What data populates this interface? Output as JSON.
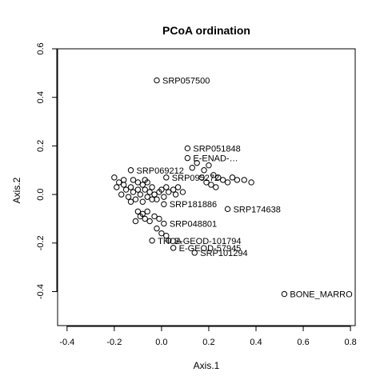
{
  "chart_data": {
    "type": "scatter",
    "title": "PCoA ordination",
    "xlabel": "Axis.1",
    "ylabel": "Axis.2",
    "xlim": [
      -0.44,
      0.82
    ],
    "ylim": [
      -0.54,
      0.6
    ],
    "xticks": [
      -0.4,
      -0.2,
      0.0,
      0.2,
      0.4,
      0.6,
      0.8
    ],
    "xtick_labels": [
      "-0.4",
      "-0.2",
      "0.0",
      "0.2",
      "0.4",
      "0.6",
      "0.8"
    ],
    "yticks": [
      -0.4,
      -0.2,
      0.0,
      0.2,
      0.4,
      0.6
    ],
    "ytick_labels": [
      "-0.4",
      "-0.2",
      "0.0",
      "0.2",
      "0.4",
      "0.6"
    ],
    "labeled_points": [
      {
        "label": "SRP057500",
        "x": -0.02,
        "y": 0.47
      },
      {
        "label": "SRP051848",
        "x": 0.11,
        "y": 0.19
      },
      {
        "label": "E-ENAD-…",
        "x": 0.11,
        "y": 0.15
      },
      {
        "label": "SRP069212",
        "x": -0.13,
        "y": 0.1
      },
      {
        "label": "SRP095272",
        "x": 0.02,
        "y": 0.07
      },
      {
        "label": "SRP174638",
        "x": 0.28,
        "y": -0.06
      },
      {
        "label": "SRP181886",
        "x": 0.01,
        "y": -0.04
      },
      {
        "label": "E-GEOD-101794",
        "x": 0.03,
        "y": -0.19
      },
      {
        "label": "THCA",
        "x": -0.04,
        "y": -0.19
      },
      {
        "label": "SRP101294",
        "x": 0.14,
        "y": -0.24
      },
      {
        "label": "E-GEOD-57945",
        "x": 0.05,
        "y": -0.22
      },
      {
        "label": "BONE_MARRO",
        "x": 0.52,
        "y": -0.41
      },
      {
        "label": "SRP048801",
        "x": 0.01,
        "y": -0.12
      }
    ],
    "unlabeled_points": [
      {
        "x": -0.2,
        "y": 0.07
      },
      {
        "x": -0.18,
        "y": 0.05
      },
      {
        "x": -0.16,
        "y": 0.04
      },
      {
        "x": -0.15,
        "y": 0.02
      },
      {
        "x": -0.13,
        "y": 0.03
      },
      {
        "x": -0.12,
        "y": 0.01
      },
      {
        "x": -0.1,
        "y": 0.02
      },
      {
        "x": -0.09,
        "y": 0.0
      },
      {
        "x": -0.08,
        "y": 0.04
      },
      {
        "x": -0.07,
        "y": 0.02
      },
      {
        "x": -0.06,
        "y": -0.01
      },
      {
        "x": -0.05,
        "y": 0.01
      },
      {
        "x": -0.04,
        "y": 0.03
      },
      {
        "x": -0.03,
        "y": 0.0
      },
      {
        "x": -0.02,
        "y": -0.02
      },
      {
        "x": -0.01,
        "y": 0.01
      },
      {
        "x": 0.0,
        "y": 0.02
      },
      {
        "x": 0.01,
        "y": -0.01
      },
      {
        "x": 0.02,
        "y": 0.03
      },
      {
        "x": 0.03,
        "y": 0.01
      },
      {
        "x": 0.05,
        "y": 0.02
      },
      {
        "x": 0.06,
        "y": 0.0
      },
      {
        "x": 0.07,
        "y": 0.03
      },
      {
        "x": 0.09,
        "y": 0.01
      },
      {
        "x": -0.19,
        "y": 0.03
      },
      {
        "x": -0.17,
        "y": 0.0
      },
      {
        "x": -0.14,
        "y": -0.01
      },
      {
        "x": -0.11,
        "y": -0.02
      },
      {
        "x": -0.1,
        "y": 0.05
      },
      {
        "x": -0.08,
        "y": -0.03
      },
      {
        "x": -0.06,
        "y": 0.05
      },
      {
        "x": -0.04,
        "y": -0.02
      },
      {
        "x": -0.12,
        "y": 0.06
      },
      {
        "x": -0.16,
        "y": 0.06
      },
      {
        "x": -0.13,
        "y": -0.03
      },
      {
        "x": -0.07,
        "y": 0.06
      },
      {
        "x": 0.13,
        "y": 0.11
      },
      {
        "x": 0.15,
        "y": 0.13
      },
      {
        "x": 0.18,
        "y": 0.1
      },
      {
        "x": 0.2,
        "y": 0.12
      },
      {
        "x": 0.22,
        "y": 0.08
      },
      {
        "x": 0.24,
        "y": 0.07
      },
      {
        "x": 0.26,
        "y": 0.06
      },
      {
        "x": 0.28,
        "y": 0.05
      },
      {
        "x": 0.3,
        "y": 0.07
      },
      {
        "x": 0.32,
        "y": 0.06
      },
      {
        "x": 0.35,
        "y": 0.06
      },
      {
        "x": 0.38,
        "y": 0.05
      },
      {
        "x": 0.17,
        "y": 0.07
      },
      {
        "x": 0.19,
        "y": 0.05
      },
      {
        "x": 0.21,
        "y": 0.04
      },
      {
        "x": 0.23,
        "y": 0.03
      },
      {
        "x": -0.11,
        "y": -0.11
      },
      {
        "x": -0.09,
        "y": -0.09
      },
      {
        "x": -0.07,
        "y": -0.1
      },
      {
        "x": -0.05,
        "y": -0.11
      },
      {
        "x": -0.03,
        "y": -0.09
      },
      {
        "x": -0.01,
        "y": -0.1
      },
      {
        "x": -0.1,
        "y": -0.07
      },
      {
        "x": -0.08,
        "y": -0.08
      },
      {
        "x": -0.06,
        "y": -0.07
      },
      {
        "x": -0.02,
        "y": -0.14
      },
      {
        "x": 0.0,
        "y": -0.16
      },
      {
        "x": 0.02,
        "y": -0.17
      }
    ]
  }
}
